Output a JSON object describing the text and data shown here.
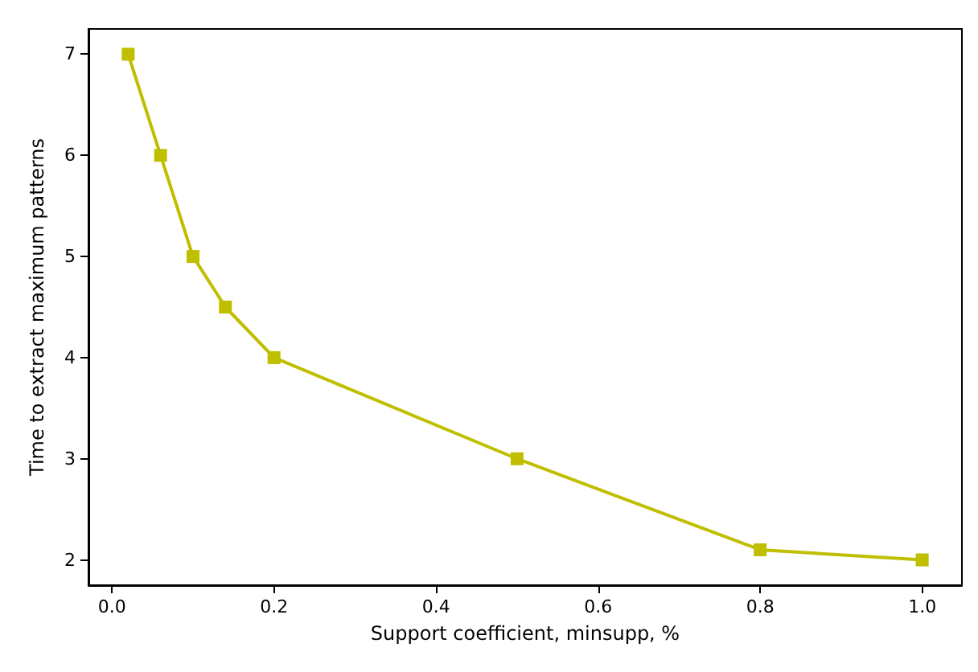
{
  "chart_data": {
    "type": "line",
    "xlabel": "Support coefficient, minsupp, %",
    "ylabel": "Time to extract maximum patterns",
    "x": [
      0.02,
      0.06,
      0.1,
      0.14,
      0.2,
      0.5,
      0.8,
      1.0
    ],
    "series": [
      {
        "color": "#bfbf00",
        "values": [
          7,
          6,
          5,
          4.5,
          4,
          3,
          2.1,
          2
        ]
      }
    ],
    "xlim": [
      -0.029,
      1.049
    ],
    "xticks": [
      {
        "value": 0,
        "label": "0.0"
      },
      0.2,
      0.4,
      0.6,
      0.8,
      {
        "value": 1,
        "label": "1.0"
      }
    ],
    "ylim": [
      1.75,
      7.25
    ],
    "yticks": [
      2,
      3,
      4,
      5,
      6,
      7
    ],
    "marker": "square",
    "line_style": "solid"
  }
}
